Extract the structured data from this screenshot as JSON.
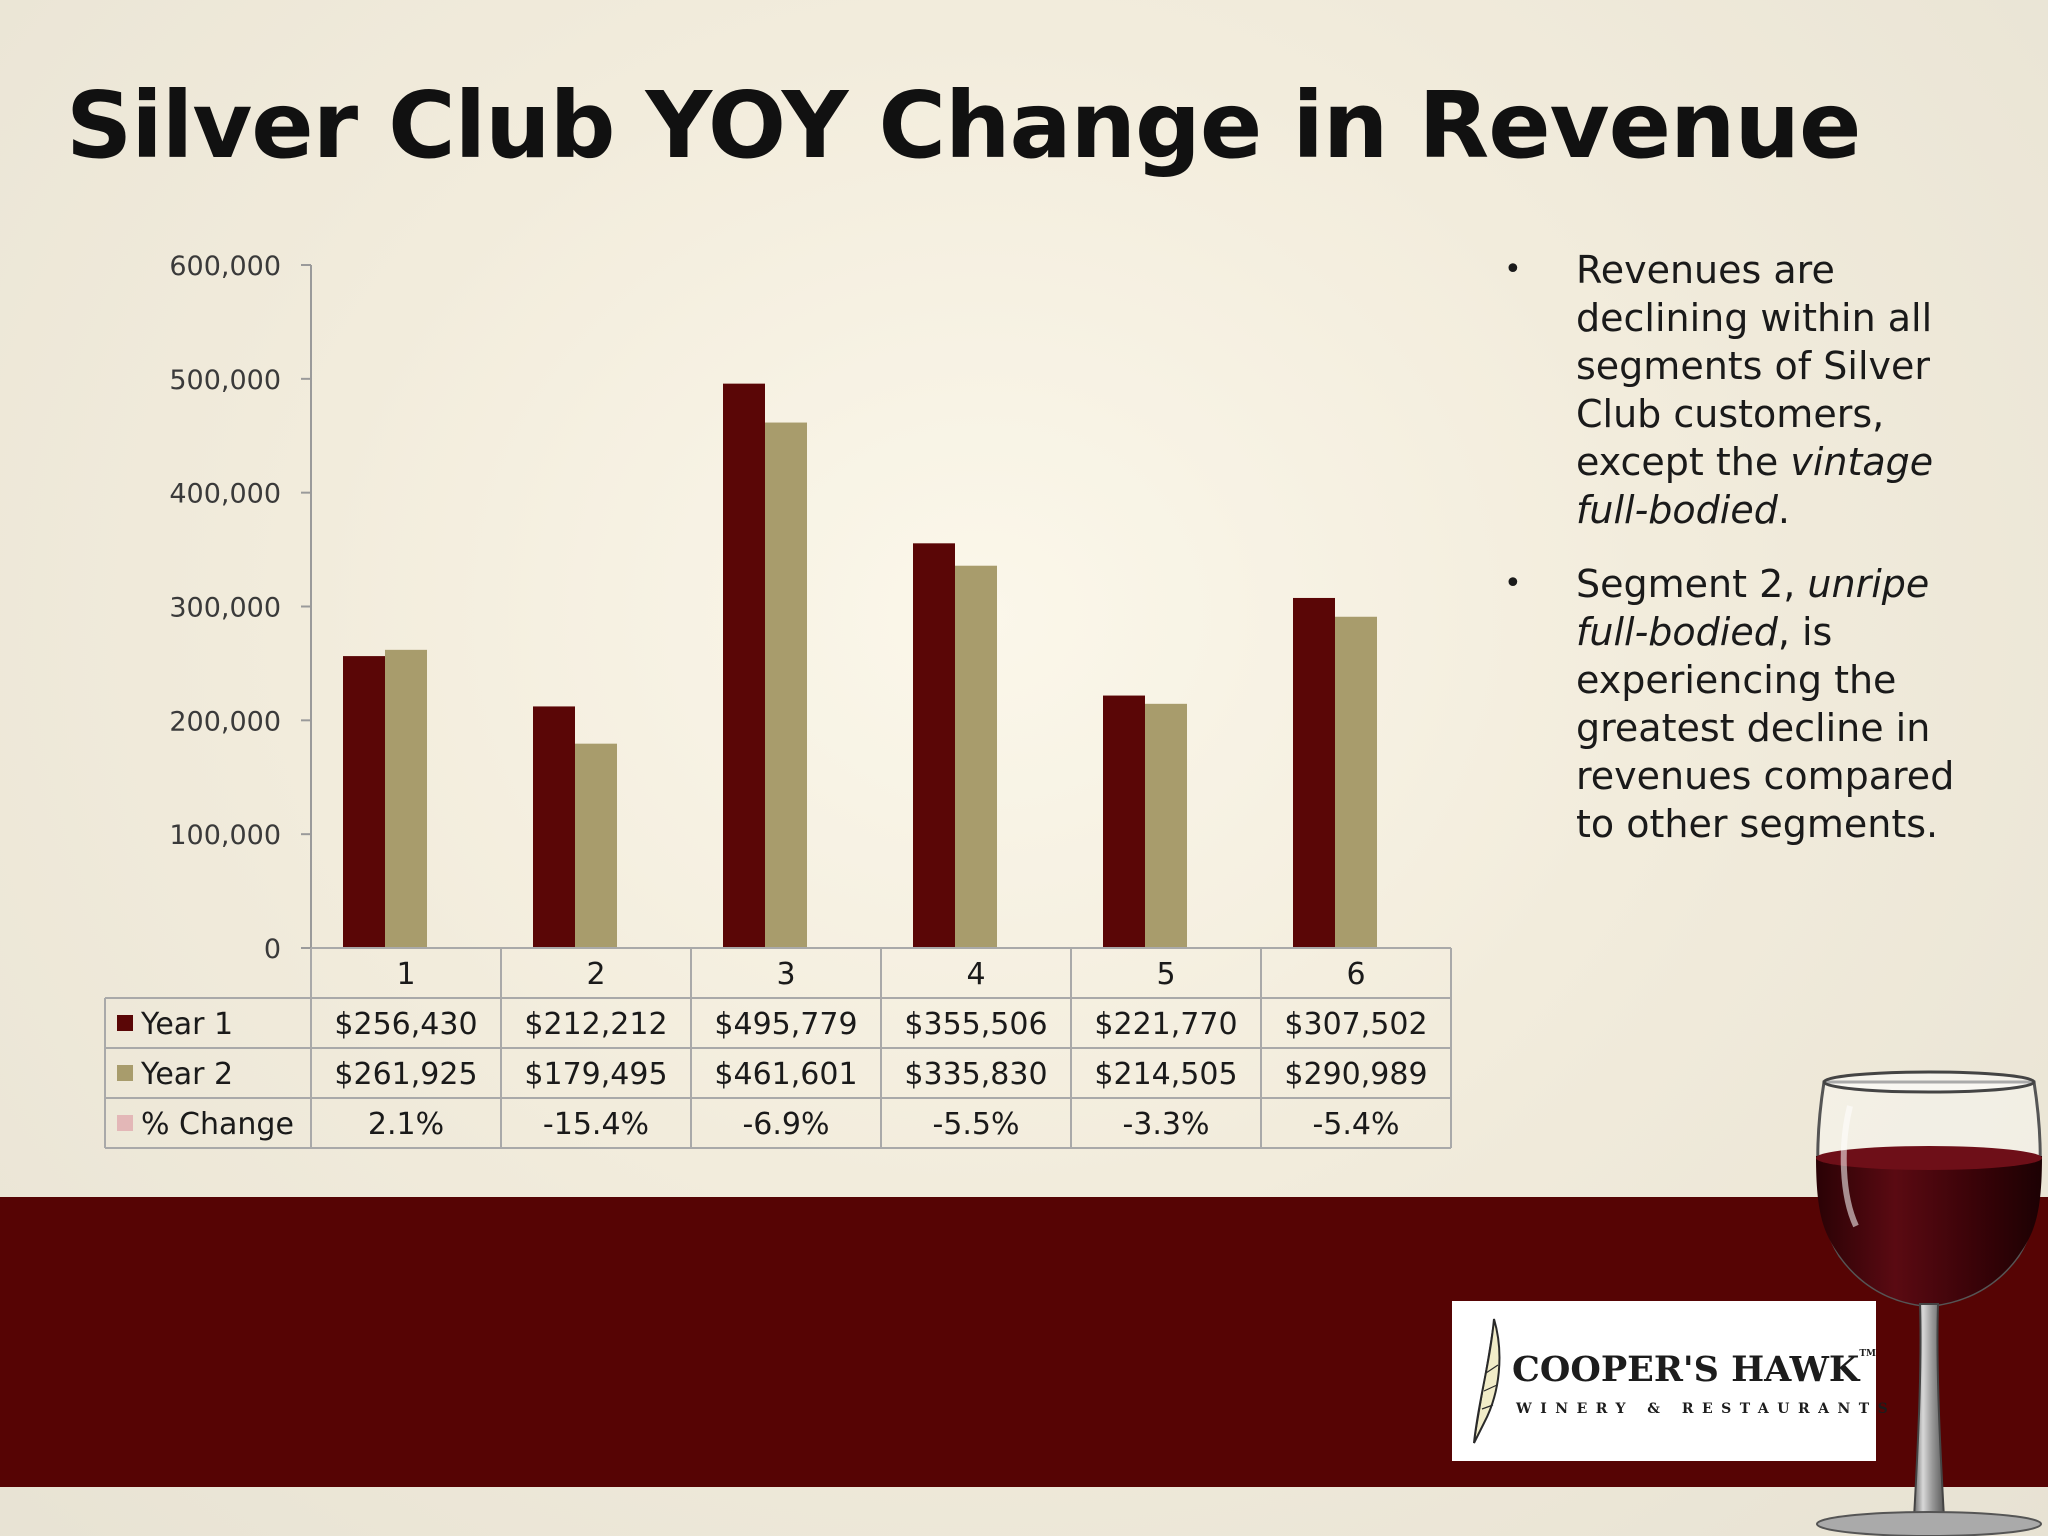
{
  "slide": {
    "title": "Silver Club YOY Change in Revenue",
    "bullets": [
      [
        {
          "text": "Revenues are declining within all segments of Silver Club customers, except the ",
          "italic": false
        },
        {
          "text": "vintage full-bodied",
          "italic": true
        },
        {
          "text": ".",
          "italic": false
        }
      ],
      [
        {
          "text": "Segment 2, ",
          "italic": false
        },
        {
          "text": "unripe full-bodied",
          "italic": true
        },
        {
          "text": ", is experiencing the greatest decline in revenues compared to other segments.",
          "italic": false
        }
      ]
    ]
  },
  "logo": {
    "name": "COOPER'S HAWK",
    "trademark": "TM",
    "subtitle": "WINERY & RESTAURANTS"
  },
  "chart_data": {
    "type": "bar",
    "categories": [
      "1",
      "2",
      "3",
      "4",
      "5",
      "6"
    ],
    "series": [
      {
        "name": "Year 1",
        "color": "#5a0606",
        "values": [
          256430,
          212212,
          495779,
          355506,
          221770,
          307502
        ],
        "table_values": [
          "$256,430",
          "$212,212",
          "$495,779",
          "$355,506",
          "$221,770",
          "$307,502"
        ]
      },
      {
        "name": "Year 2",
        "color": "#a89c6c",
        "values": [
          261925,
          179495,
          461601,
          335830,
          214505,
          290989
        ],
        "table_values": [
          "$261,925",
          "$179,495",
          "$461,601",
          "$335,830",
          "$214,505",
          "$290,989"
        ]
      }
    ],
    "extra_rows": [
      {
        "name": "% Change",
        "color": "#e3b7b7",
        "values": [
          "2.1%",
          "-15.4%",
          "-6.9%",
          "-5.5%",
          "-3.3%",
          "-5.4%"
        ]
      }
    ],
    "y_ticks": [
      "0",
      "100,000",
      "200,000",
      "300,000",
      "400,000",
      "500,000",
      "600,000"
    ],
    "ylim": [
      0,
      600000
    ],
    "grid": false,
    "legend": "data-table"
  }
}
